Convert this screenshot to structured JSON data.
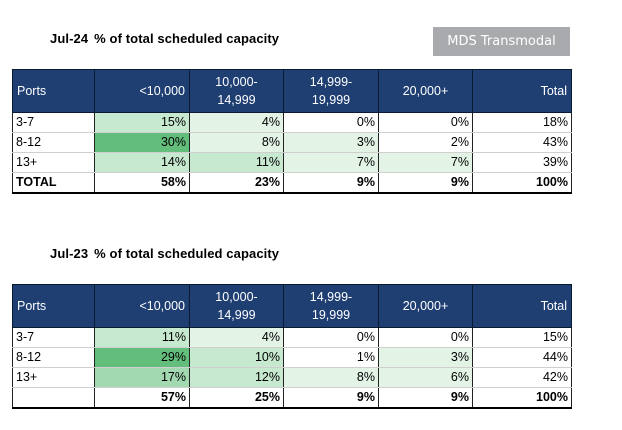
{
  "brand": "MDS Transmodal",
  "tables": [
    {
      "month": "Jul-24",
      "title": "% of total scheduled capacity",
      "headers": [
        "Ports",
        "<10,000",
        "10,000-\n14,999",
        "14,999-\n19,999",
        "20,000+",
        "Total"
      ],
      "rows": [
        [
          "3-7",
          "15%",
          "4%",
          "0%",
          "0%",
          "18%"
        ],
        [
          "8-12",
          "30%",
          "8%",
          "3%",
          "2%",
          "43%"
        ],
        [
          "13+",
          "14%",
          "11%",
          "7%",
          "7%",
          "39%"
        ]
      ],
      "total_row": [
        "TOTAL",
        "58%",
        "23%",
        "9%",
        "9%",
        "100%"
      ]
    },
    {
      "month": "Jul-23",
      "title": "% of total scheduled capacity",
      "headers": [
        "Ports",
        "<10,000",
        "10,000-\n14,999",
        "14,999-\n19,999",
        "20,000+",
        "Total"
      ],
      "rows": [
        [
          "3-7",
          "11%",
          "4%",
          "0%",
          "0%",
          "15%"
        ],
        [
          "8-12",
          "29%",
          "10%",
          "1%",
          "3%",
          "44%"
        ],
        [
          "13+",
          "17%",
          "12%",
          "8%",
          "6%",
          "42%"
        ]
      ],
      "total_row": [
        "",
        "57%",
        "25%",
        "9%",
        "9%",
        "100%"
      ]
    }
  ]
}
